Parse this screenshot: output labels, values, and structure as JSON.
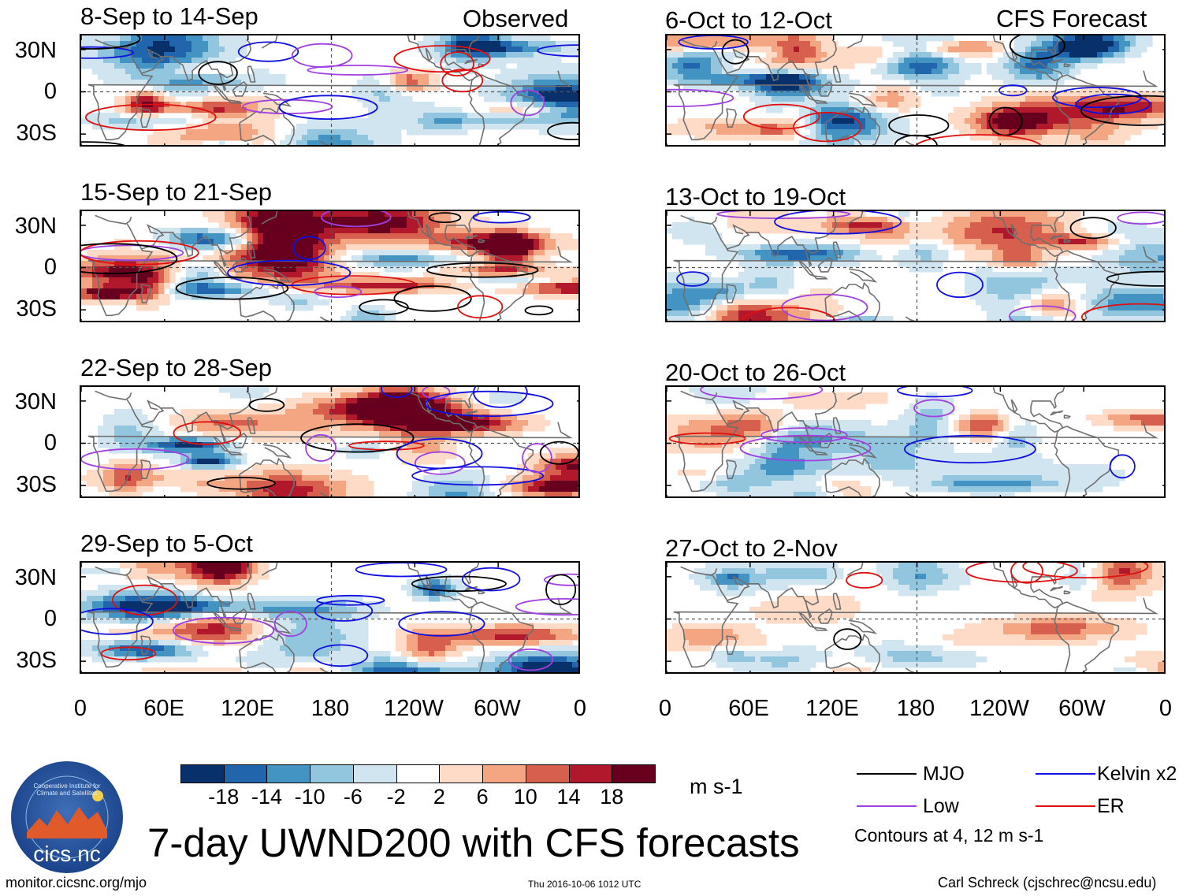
{
  "chart_data": {
    "type": "heatmap",
    "title": "7-day UWND200 with CFS forecasts",
    "variable": "200-hPa zonal wind anomaly",
    "units": "m s-1",
    "columns": [
      {
        "heading": "Observed",
        "panels": [
          "8-Sep to 14-Sep",
          "15-Sep to 21-Sep",
          "22-Sep to 28-Sep",
          "29-Sep to 5-Oct"
        ]
      },
      {
        "heading": "CFS Forecast",
        "panels": [
          "6-Oct to 12-Oct",
          "13-Oct to 19-Oct",
          "20-Oct to 26-Oct",
          "27-Oct to 2-Nov"
        ]
      }
    ],
    "y_ticks": [
      "30N",
      "0",
      "30S"
    ],
    "x_ticks": [
      "0",
      "60E",
      "120E",
      "180",
      "120W",
      "60W",
      "0"
    ],
    "colorbar": {
      "colors": [
        "#08306b",
        "#2166ac",
        "#4393c3",
        "#92c5de",
        "#d1e5f0",
        "#ffffff",
        "#fddbc7",
        "#f4a582",
        "#d6604d",
        "#b2182b",
        "#67001f"
      ],
      "ticks": [
        "-18",
        "-14",
        "-10",
        "-6",
        "-2",
        "2",
        "6",
        "10",
        "14",
        "18"
      ]
    },
    "legend": [
      {
        "label": "MJO",
        "color": "#000000"
      },
      {
        "label": "Kelvin x2",
        "color": "#1010e0"
      },
      {
        "label": "Low",
        "color": "#a040e0"
      },
      {
        "label": "ER",
        "color": "#e01010"
      }
    ],
    "contours_note": "Contours at 4, 12 m s-1"
  },
  "footer": {
    "left": "monitor.cicsnc.org/mjo",
    "center": "Thu 2016-10-06 1012 UTC",
    "right": "Carl Schreck (cjschrec@ncsu.edu)"
  },
  "logo": {
    "text": "cics.nc",
    "ring_text": "Cooperative Institute for Climate and Satellites"
  }
}
